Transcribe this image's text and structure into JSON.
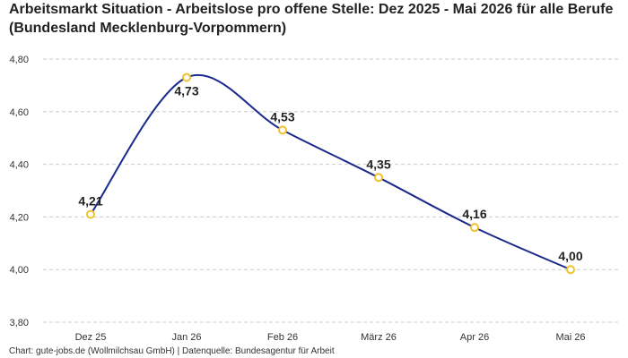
{
  "title": "Arbeitsmarkt Situation - Arbeitslose pro offene Stelle: Dez 2025 - Mai 2026 für alle Berufe (Bundesland Mecklenburg-Vorpommern)",
  "footer": "Chart: gute-jobs.de (Wollmilchsau GmbH) | Datenquelle: Bundesagentur für Arbeit",
  "colors": {
    "line": "#1a2a8c",
    "marker": "#f2c12e",
    "grid": "#cccccc"
  },
  "chart_data": {
    "type": "line",
    "categories": [
      "Dez 25",
      "Jan 26",
      "Feb 26",
      "März 26",
      "Apr 26",
      "Mai 26"
    ],
    "values": [
      4.21,
      4.73,
      4.53,
      4.35,
      4.16,
      4.0
    ],
    "data_labels": [
      "4,21",
      "4,73",
      "4,53",
      "4,35",
      "4,16",
      "4,00"
    ],
    "y_ticks": [
      "3,80",
      "4,00",
      "4,20",
      "4,40",
      "4,60",
      "4,80"
    ],
    "ylim": [
      3.8,
      4.8
    ],
    "grid": true,
    "legend": "none"
  }
}
